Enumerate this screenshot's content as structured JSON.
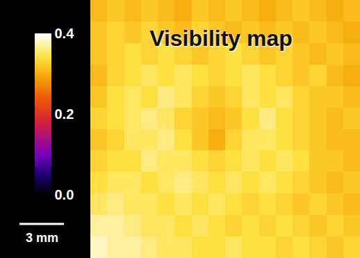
{
  "chart_data": {
    "type": "heatmap",
    "title": "Visibility map",
    "z": [
      [
        0.31,
        0.32,
        0.31,
        0.32,
        0.31,
        0.3,
        0.32,
        0.31,
        0.32,
        0.31,
        0.3,
        0.31,
        0.32,
        0.31,
        0.3,
        0.31
      ],
      [
        0.32,
        0.33,
        0.32,
        0.33,
        0.32,
        0.31,
        0.33,
        0.32,
        0.31,
        0.32,
        0.31,
        0.32,
        0.31,
        0.32,
        0.31,
        0.3
      ],
      [
        0.32,
        0.33,
        0.34,
        0.33,
        0.34,
        0.33,
        0.32,
        0.33,
        0.34,
        0.33,
        0.32,
        0.33,
        0.32,
        0.31,
        0.32,
        0.31
      ],
      [
        0.31,
        0.33,
        0.34,
        0.35,
        0.34,
        0.35,
        0.34,
        0.33,
        0.34,
        0.35,
        0.34,
        0.33,
        0.32,
        0.33,
        0.31,
        0.3
      ],
      [
        0.32,
        0.34,
        0.35,
        0.34,
        0.36,
        0.35,
        0.33,
        0.32,
        0.33,
        0.35,
        0.34,
        0.35,
        0.33,
        0.32,
        0.32,
        0.31
      ],
      [
        0.33,
        0.34,
        0.35,
        0.36,
        0.35,
        0.33,
        0.32,
        0.31,
        0.32,
        0.34,
        0.36,
        0.34,
        0.33,
        0.32,
        0.31,
        0.32
      ],
      [
        0.32,
        0.33,
        0.35,
        0.35,
        0.36,
        0.34,
        0.32,
        0.3,
        0.33,
        0.35,
        0.35,
        0.34,
        0.33,
        0.32,
        0.31,
        0.31
      ],
      [
        0.33,
        0.34,
        0.34,
        0.36,
        0.35,
        0.35,
        0.34,
        0.33,
        0.34,
        0.35,
        0.34,
        0.35,
        0.34,
        0.32,
        0.32,
        0.31
      ],
      [
        0.34,
        0.35,
        0.35,
        0.34,
        0.35,
        0.36,
        0.35,
        0.34,
        0.35,
        0.34,
        0.35,
        0.34,
        0.33,
        0.32,
        0.31,
        0.32
      ],
      [
        0.35,
        0.36,
        0.35,
        0.35,
        0.34,
        0.35,
        0.34,
        0.35,
        0.34,
        0.33,
        0.34,
        0.33,
        0.32,
        0.33,
        0.32,
        0.31
      ],
      [
        0.37,
        0.37,
        0.36,
        0.35,
        0.35,
        0.34,
        0.35,
        0.34,
        0.33,
        0.34,
        0.33,
        0.34,
        0.33,
        0.32,
        0.33,
        0.32
      ],
      [
        0.38,
        0.37,
        0.37,
        0.36,
        0.35,
        0.35,
        0.34,
        0.34,
        0.35,
        0.34,
        0.34,
        0.33,
        0.34,
        0.33,
        0.32,
        0.33
      ]
    ],
    "colorbar": {
      "range": [
        0,
        0.4
      ],
      "ticks": [
        {
          "value": 0,
          "label": "0.0"
        },
        {
          "value": 0.2,
          "label": "0.2"
        },
        {
          "value": 0.4,
          "label": "0.4"
        }
      ]
    },
    "annotations": [
      {
        "text": "3 mm"
      }
    ],
    "tick_labels": false
  }
}
